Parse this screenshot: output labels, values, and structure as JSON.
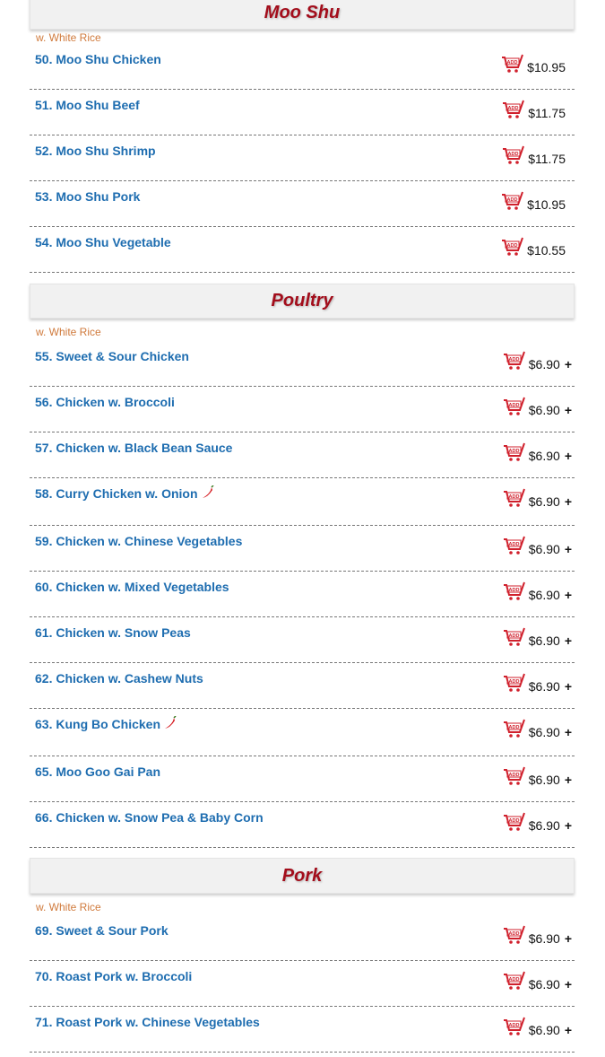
{
  "sections": [
    {
      "title": "Moo Shu",
      "subtitle": "w. White Rice",
      "plus": false,
      "items": [
        {
          "name": "50. Moo Shu Chicken",
          "price": "$10.95"
        },
        {
          "name": "51. Moo Shu Beef",
          "price": "$11.75"
        },
        {
          "name": "52. Moo Shu Shrimp",
          "price": "$11.75"
        },
        {
          "name": "53. Moo Shu Pork",
          "price": "$10.95"
        },
        {
          "name": "54. Moo Shu Vegetable",
          "price": "$10.55"
        }
      ]
    },
    {
      "title": "Poultry",
      "subtitle": "w. White Rice",
      "plus": true,
      "items": [
        {
          "name": "55. Sweet & Sour Chicken",
          "price": "$6.90"
        },
        {
          "name": "56. Chicken w. Broccoli",
          "price": "$6.90"
        },
        {
          "name": "57. Chicken w. Black Bean Sauce",
          "price": "$6.90"
        },
        {
          "name": "58. Curry Chicken w. Onion",
          "price": "$6.90",
          "spicy": true
        },
        {
          "name": "59. Chicken w. Chinese Vegetables",
          "price": "$6.90"
        },
        {
          "name": "60. Chicken w. Mixed Vegetables",
          "price": "$6.90"
        },
        {
          "name": "61. Chicken w. Snow Peas",
          "price": "$6.90"
        },
        {
          "name": "62. Chicken w. Cashew Nuts",
          "price": "$6.90"
        },
        {
          "name": "63. Kung Bo Chicken",
          "price": "$6.90",
          "spicy": true
        },
        {
          "name": "65. Moo Goo Gai Pan",
          "price": "$6.90"
        },
        {
          "name": "66. Chicken w. Snow Pea & Baby Corn",
          "price": "$6.90"
        }
      ]
    },
    {
      "title": "Pork",
      "subtitle": "w. White Rice",
      "plus": true,
      "items": [
        {
          "name": "69. Sweet & Sour Pork",
          "price": "$6.90"
        },
        {
          "name": "70. Roast Pork w. Broccoli",
          "price": "$6.90"
        },
        {
          "name": "71. Roast Pork w. Chinese Vegetables",
          "price": "$6.90"
        }
      ]
    }
  ],
  "plus_label": "+",
  "colors": {
    "title": "#a30d1b",
    "item": "#1e6db0",
    "subtitle": "#d07a3c",
    "cart": "#d0202c"
  },
  "icons": {
    "cart": "add-to-cart-icon",
    "spicy": "chili-pepper-icon"
  }
}
